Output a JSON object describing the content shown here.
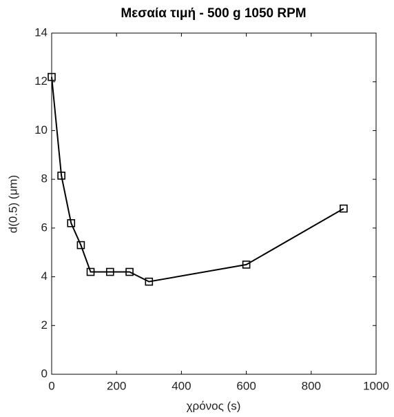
{
  "chart_data": {
    "type": "line",
    "title": "Μεσαία τιμή - 500 g 1050 RPM",
    "x_label": "χρόνος (s)",
    "y_label": "d(0.5) (μm)",
    "x": [
      0,
      30,
      60,
      90,
      120,
      180,
      240,
      300,
      600,
      900
    ],
    "series": [
      {
        "color": "#000000",
        "values": [
          12.2,
          8.15,
          6.2,
          5.3,
          4.2,
          4.2,
          4.2,
          3.8,
          4.5,
          6.8
        ]
      }
    ],
    "xlim": [
      0,
      1000
    ],
    "xticks": [
      0,
      200,
      400,
      600,
      800,
      1000
    ],
    "ylim": [
      0,
      14
    ],
    "yticks": [
      0,
      2,
      4,
      6,
      8,
      10,
      12,
      14
    ],
    "marker": "square",
    "grid": false
  }
}
